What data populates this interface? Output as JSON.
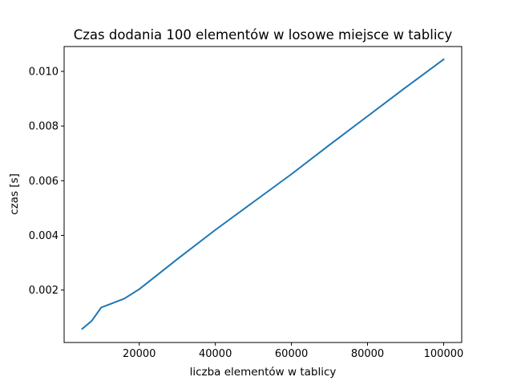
{
  "chart_data": {
    "type": "line",
    "title": "Czas dodania 100 elementów w losowe miejsce w tablicy",
    "xlabel": "liczba elementów w tablicy",
    "ylabel": "czas [s]",
    "xlim": [
      250,
      104750
    ],
    "ylim": [
      8e-05,
      0.01091
    ],
    "xticks": [
      20000,
      40000,
      60000,
      80000,
      100000
    ],
    "xtick_labels": [
      "20000",
      "40000",
      "60000",
      "80000",
      "100000"
    ],
    "yticks": [
      0.002,
      0.004,
      0.006,
      0.008,
      0.01
    ],
    "ytick_labels": [
      "0.002",
      "0.004",
      "0.006",
      "0.008",
      "0.010"
    ],
    "grid": false,
    "series": [
      {
        "color": "#1f77b4",
        "x": [
          5000,
          7500,
          10000,
          16000,
          20000,
          30000,
          40000,
          50000,
          60000,
          70000,
          80000,
          90000,
          100000
        ],
        "y": [
          0.00058,
          0.00087,
          0.00136,
          0.00168,
          0.00203,
          0.00313,
          0.0042,
          0.00522,
          0.00624,
          0.00731,
          0.00836,
          0.00941,
          0.01044
        ]
      }
    ]
  }
}
